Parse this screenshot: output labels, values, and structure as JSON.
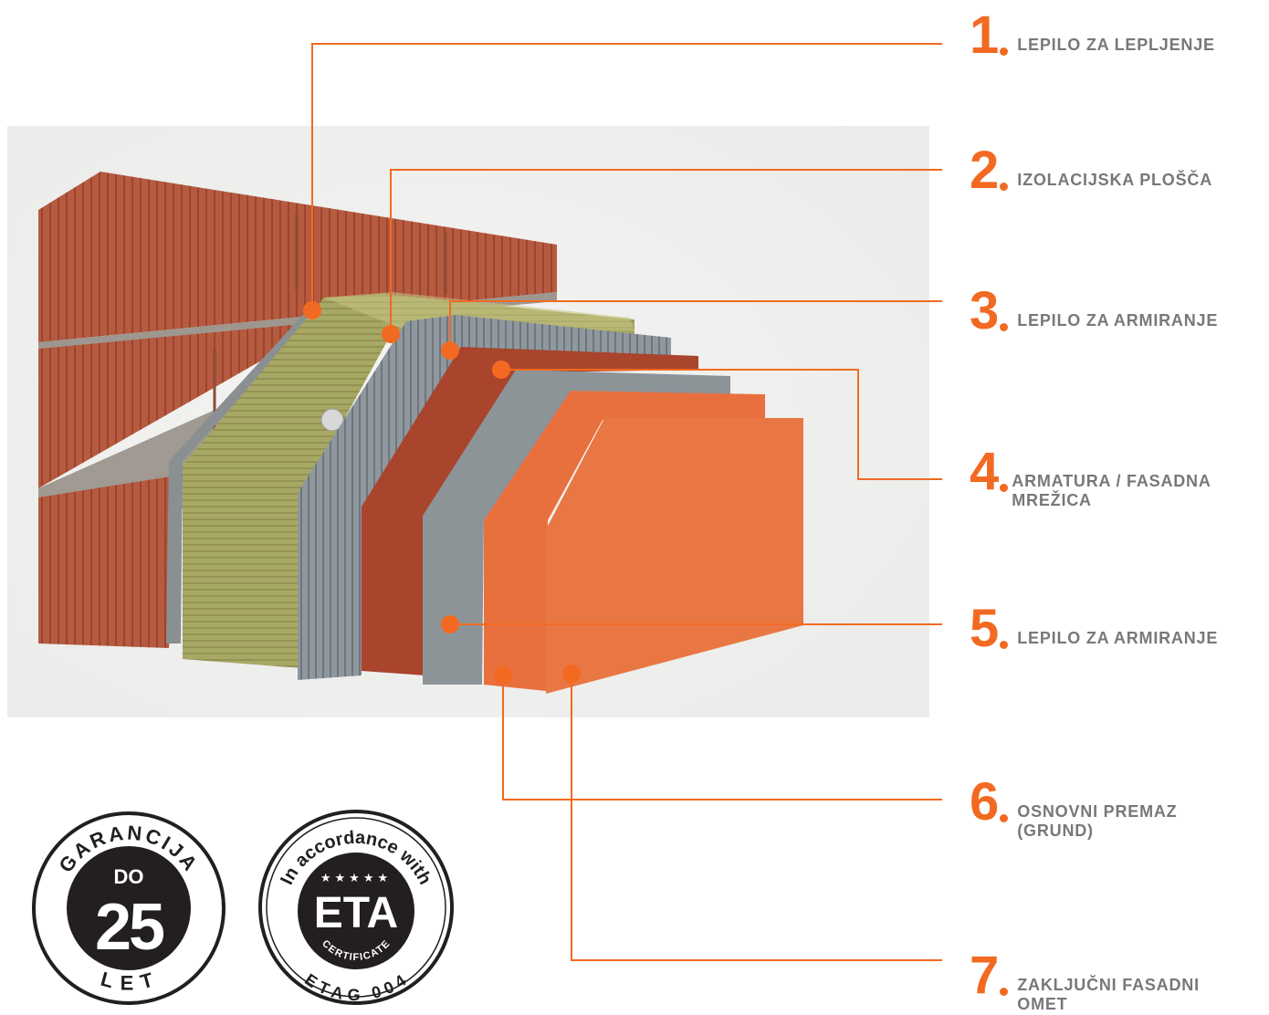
{
  "colors": {
    "accent": "#f26a21",
    "label_gray": "#77787b",
    "badge_dark": "#231f20"
  },
  "layers": [
    {
      "number": "1",
      "label_lines": [
        "LEPILO ZA LEPLJENJE"
      ]
    },
    {
      "number": "2",
      "label_lines": [
        "IZOLACIJSKA PLOŠČA"
      ]
    },
    {
      "number": "3",
      "label_lines": [
        "LEPILO ZA ARMIRANJE"
      ]
    },
    {
      "number": "4",
      "label_lines": [
        "ARMATURA / FASADNA",
        "MREŽICA"
      ]
    },
    {
      "number": "5",
      "label_lines": [
        "LEPILO ZA ARMIRANJE"
      ]
    },
    {
      "number": "6",
      "label_lines": [
        "OSNOVNI PREMAZ",
        "(GRUND)"
      ]
    },
    {
      "number": "7",
      "label_lines": [
        "ZAKLJUČNI FASADNI",
        "OMET"
      ]
    }
  ],
  "badges": {
    "guarantee": {
      "top_text": "GARANCIJA",
      "prefix": "DO",
      "value": "25",
      "bottom_text": "LET"
    },
    "eta": {
      "top_text": "In accordance with",
      "title": "ETA",
      "subtitle": "CERTIFICATE",
      "bottom_text": "ETAG 004"
    }
  }
}
